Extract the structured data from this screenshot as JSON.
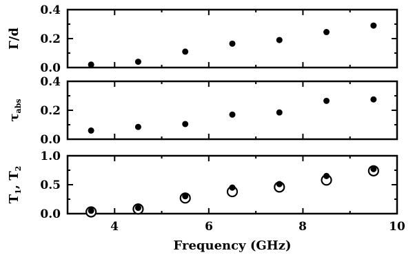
{
  "chart_data": [
    {
      "type": "scatter",
      "ylabel": "Γ/d",
      "ylim": [
        0,
        0.4
      ],
      "yticks": [
        "0.0",
        "0.2",
        "0.4"
      ],
      "xlim": [
        3,
        10
      ],
      "series": [
        {
          "marker": "filled",
          "points": [
            {
              "x": 3.5,
              "y": 0.02
            },
            {
              "x": 4.5,
              "y": 0.04
            },
            {
              "x": 5.5,
              "y": 0.11
            },
            {
              "x": 6.5,
              "y": 0.165
            },
            {
              "x": 7.5,
              "y": 0.19
            },
            {
              "x": 8.5,
              "y": 0.245
            },
            {
              "x": 9.5,
              "y": 0.29
            }
          ]
        }
      ]
    },
    {
      "type": "scatter",
      "ylabel": "τ",
      "ylabel_sub": "abs",
      "ylim": [
        0,
        0.4
      ],
      "yticks": [
        "0.0",
        "0.2",
        "0.4"
      ],
      "xlim": [
        3,
        10
      ],
      "series": [
        {
          "marker": "filled",
          "points": [
            {
              "x": 3.5,
              "y": 0.06
            },
            {
              "x": 4.5,
              "y": 0.085
            },
            {
              "x": 5.5,
              "y": 0.105
            },
            {
              "x": 6.5,
              "y": 0.17
            },
            {
              "x": 7.5,
              "y": 0.185
            },
            {
              "x": 8.5,
              "y": 0.265
            },
            {
              "x": 9.5,
              "y": 0.275
            }
          ]
        }
      ]
    },
    {
      "type": "scatter",
      "ylabel_parts": [
        "T",
        "1",
        ", T",
        "2"
      ],
      "ylim": [
        0,
        1.0
      ],
      "yticks": [
        "0.0",
        "0.5",
        "1.0"
      ],
      "xlim": [
        3,
        10
      ],
      "xticks": [
        "4",
        "6",
        "8",
        "10"
      ],
      "xlabel": "Frequency (GHz)",
      "series": [
        {
          "name": "T1",
          "marker": "filled",
          "points": [
            {
              "x": 3.5,
              "y": 0.05
            },
            {
              "x": 4.5,
              "y": 0.1
            },
            {
              "x": 5.5,
              "y": 0.3
            },
            {
              "x": 6.5,
              "y": 0.45
            },
            {
              "x": 7.5,
              "y": 0.51
            },
            {
              "x": 8.5,
              "y": 0.65
            },
            {
              "x": 9.5,
              "y": 0.77
            }
          ]
        },
        {
          "name": "T2",
          "marker": "open",
          "points": [
            {
              "x": 3.5,
              "y": 0.03
            },
            {
              "x": 4.5,
              "y": 0.08
            },
            {
              "x": 5.5,
              "y": 0.27
            },
            {
              "x": 6.5,
              "y": 0.38
            },
            {
              "x": 7.5,
              "y": 0.46
            },
            {
              "x": 8.5,
              "y": 0.58
            },
            {
              "x": 9.5,
              "y": 0.74
            }
          ]
        }
      ]
    }
  ]
}
